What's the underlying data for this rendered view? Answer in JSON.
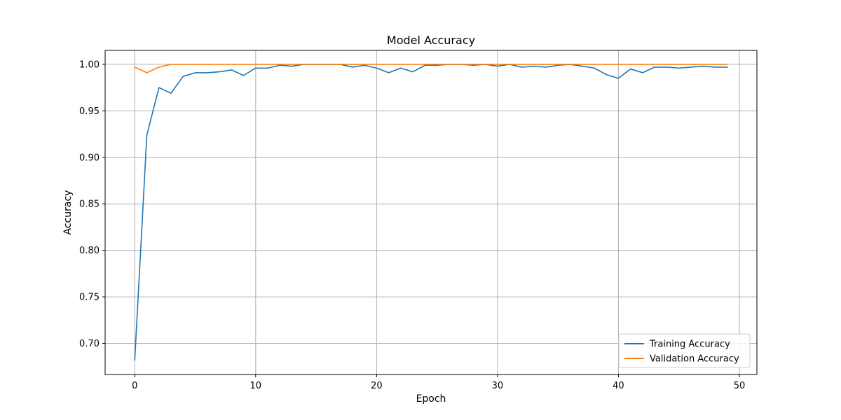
{
  "chart_data": {
    "type": "line",
    "title": "Model Accuracy",
    "xlabel": "Epoch",
    "ylabel": "Accuracy",
    "xlim": [
      -2.45,
      51.45
    ],
    "ylim": [
      0.6665,
      1.015
    ],
    "xticks": [
      0,
      10,
      20,
      30,
      40,
      50
    ],
    "xtick_labels": [
      "0",
      "10",
      "20",
      "30",
      "40",
      "50"
    ],
    "yticks": [
      0.7,
      0.75,
      0.8,
      0.85,
      0.9,
      0.95,
      1.0
    ],
    "ytick_labels": [
      "0.70",
      "0.75",
      "0.80",
      "0.85",
      "0.90",
      "0.95",
      "1.00"
    ],
    "grid": true,
    "legend_position": "lower-right",
    "x": [
      0,
      1,
      2,
      3,
      4,
      5,
      6,
      7,
      8,
      9,
      10,
      11,
      12,
      13,
      14,
      15,
      16,
      17,
      18,
      19,
      20,
      21,
      22,
      23,
      24,
      25,
      26,
      27,
      28,
      29,
      30,
      31,
      32,
      33,
      34,
      35,
      36,
      37,
      38,
      39,
      40,
      41,
      42,
      43,
      44,
      45,
      46,
      47,
      48,
      49
    ],
    "series": [
      {
        "name": "Training Accuracy",
        "color": "#1f77b4",
        "values": [
          0.682,
          0.924,
          0.975,
          0.969,
          0.987,
          0.991,
          0.991,
          0.992,
          0.994,
          0.988,
          0.996,
          0.996,
          0.999,
          0.998,
          1.0,
          1.0,
          1.0,
          1.0,
          0.997,
          0.999,
          0.996,
          0.991,
          0.996,
          0.992,
          0.999,
          0.999,
          1.0,
          1.0,
          0.999,
          1.0,
          0.998,
          1.0,
          0.997,
          0.998,
          0.997,
          0.999,
          1.0,
          0.998,
          0.996,
          0.989,
          0.985,
          0.995,
          0.991,
          0.997,
          0.997,
          0.996,
          0.997,
          0.998,
          0.997,
          0.997
        ]
      },
      {
        "name": "Validation Accuracy",
        "color": "#ff7f0e",
        "values": [
          0.997,
          0.991,
          0.997,
          1.0,
          1.0,
          1.0,
          1.0,
          1.0,
          1.0,
          1.0,
          1.0,
          1.0,
          1.0,
          1.0,
          1.0,
          1.0,
          1.0,
          1.0,
          1.0,
          1.0,
          1.0,
          1.0,
          1.0,
          1.0,
          1.0,
          1.0,
          1.0,
          1.0,
          1.0,
          1.0,
          1.0,
          1.0,
          1.0,
          1.0,
          1.0,
          1.0,
          1.0,
          1.0,
          1.0,
          1.0,
          1.0,
          1.0,
          1.0,
          1.0,
          1.0,
          1.0,
          1.0,
          1.0,
          1.0,
          1.0
        ]
      }
    ]
  }
}
